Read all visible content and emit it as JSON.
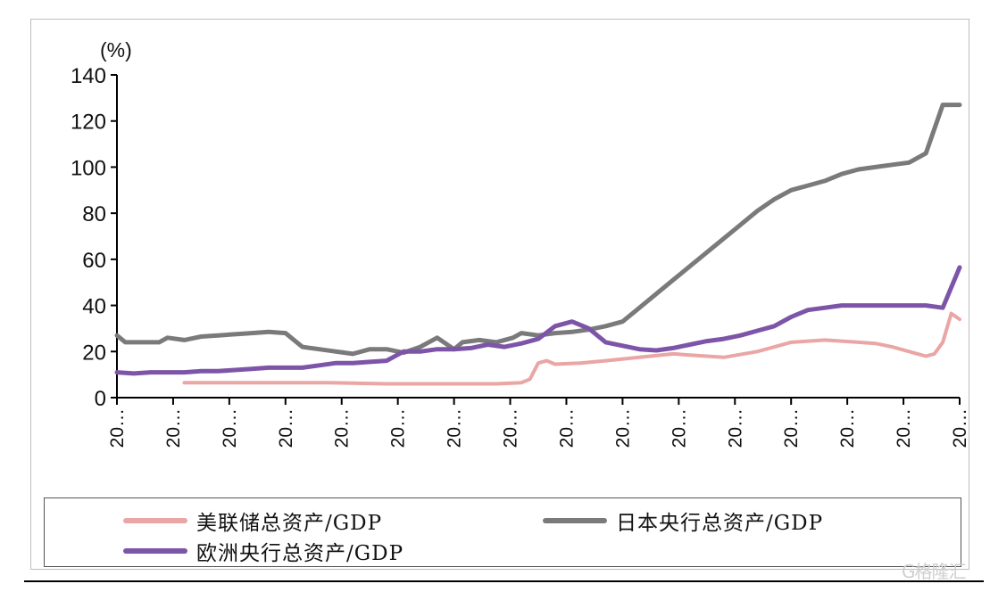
{
  "chart_data": {
    "type": "line",
    "unit_label": "(%)",
    "ylim": [
      0,
      140
    ],
    "yticks": [
      0,
      20,
      40,
      60,
      80,
      100,
      120,
      140
    ],
    "x_tick_labels": [
      "20…",
      "20…",
      "20…",
      "20…",
      "20…",
      "20…",
      "20…",
      "20…",
      "20…",
      "20…",
      "20…",
      "20…",
      "20…",
      "20…",
      "20…",
      "20…"
    ],
    "x_index_range": [
      0,
      100
    ],
    "legend_position": "bottom",
    "grid": false,
    "series": [
      {
        "name": "美联储总资产/GDP",
        "color": "#eaa5a5",
        "x": [
          8,
          12,
          18,
          25,
          32,
          40,
          45,
          48,
          49,
          50,
          51,
          52,
          55,
          58,
          62,
          66,
          68,
          70,
          72,
          76,
          80,
          84,
          88,
          90,
          92,
          94,
          95,
          96,
          97,
          98,
          99,
          100
        ],
        "values": [
          6.5,
          6.5,
          6.5,
          6.5,
          6,
          6,
          6,
          6.5,
          8,
          15,
          16,
          14.5,
          15,
          16,
          17.5,
          19,
          18.5,
          18,
          17.5,
          20,
          24,
          25,
          24,
          23.5,
          22,
          20,
          19,
          18,
          19,
          24,
          36.5,
          34
        ]
      },
      {
        "name": "日本央行总资产/GDP",
        "color": "#7a7a7a",
        "x": [
          0,
          1,
          3,
          5,
          6,
          8,
          10,
          12,
          14,
          16,
          18,
          20,
          22,
          24,
          26,
          28,
          30,
          32,
          34,
          36,
          38,
          40,
          41,
          43,
          45,
          47,
          48,
          50,
          52,
          54,
          56,
          58,
          60,
          62,
          64,
          66,
          68,
          70,
          72,
          74,
          76,
          78,
          80,
          82,
          84,
          86,
          88,
          90,
          92,
          94,
          96,
          98,
          100
        ],
        "values": [
          27,
          24,
          24,
          24,
          26,
          25,
          26.5,
          27,
          27.5,
          28,
          28.5,
          28,
          22,
          21,
          20,
          19,
          21,
          21,
          19.5,
          22,
          26,
          21,
          24,
          25,
          24,
          26,
          28,
          27,
          28,
          28.5,
          29.5,
          31,
          33,
          39,
          45,
          51,
          57,
          63,
          69,
          75,
          81,
          86,
          90,
          92,
          94,
          97,
          99,
          100,
          101,
          102,
          106,
          127,
          127
        ]
      },
      {
        "name": "欧洲央行总资产/GDP",
        "color": "#7d55a8",
        "x": [
          0,
          2,
          4,
          6,
          8,
          10,
          12,
          14,
          16,
          18,
          20,
          22,
          24,
          26,
          28,
          30,
          32,
          34,
          36,
          38,
          40,
          42,
          44,
          46,
          48,
          50,
          52,
          54,
          56,
          58,
          60,
          62,
          64,
          66,
          68,
          70,
          72,
          74,
          76,
          78,
          80,
          82,
          84,
          86,
          88,
          90,
          92,
          94,
          96,
          98,
          100
        ],
        "values": [
          11,
          10.5,
          11,
          11,
          11,
          11.5,
          11.5,
          12,
          12.5,
          13,
          13,
          13,
          14,
          15,
          15,
          15.5,
          16,
          20,
          20,
          21,
          21,
          21.5,
          23,
          22,
          23.5,
          25.5,
          31,
          33,
          30,
          24,
          22.5,
          21,
          20.5,
          21.5,
          23,
          24.5,
          25.5,
          27,
          29,
          31,
          35,
          38,
          39,
          40,
          40,
          40,
          40,
          40,
          40,
          39,
          56.5
        ]
      }
    ]
  }
}
